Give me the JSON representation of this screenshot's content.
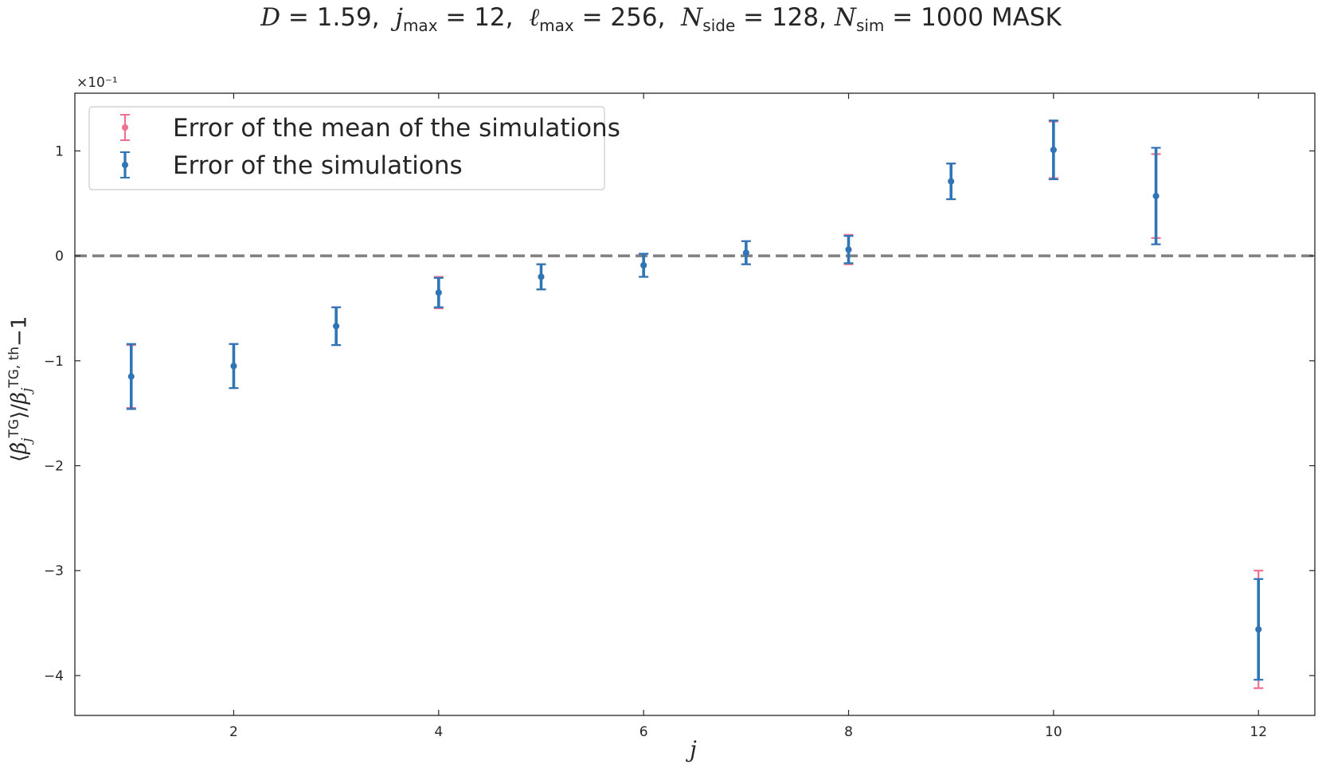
{
  "chart_data": {
    "type": "scatter",
    "title": "D = 1.59,  j_max = 12,  ℓ_max = 256,  N_side = 128, N_sim = 1000 MASK",
    "xlabel": "j",
    "ylabel": "⟨β̂_j^TG⟩/β_j^TG, th − 1",
    "y_multiplier": "×10⁻¹",
    "xlim": [
      0.45,
      12.55
    ],
    "ylim": [
      -4.38,
      1.55
    ],
    "xticks": [
      2,
      4,
      6,
      8,
      10,
      12
    ],
    "yticks": [
      1,
      0,
      -1,
      -2,
      -3,
      -4
    ],
    "ytick_labels": [
      "1",
      "0",
      "−1",
      "−2",
      "−3",
      "−4"
    ],
    "reference_line": {
      "y": 0,
      "style": "dashed",
      "color": "#808080"
    },
    "grid": false,
    "legend_position": "top-left",
    "series": [
      {
        "name": "Error of the mean of the simulations",
        "color": "#f0718f",
        "x": [
          1,
          2,
          3,
          4,
          5,
          6,
          7,
          8,
          9,
          10,
          11,
          12
        ],
        "y": [
          -1.15,
          -1.05,
          -0.67,
          -0.35,
          -0.2,
          -0.09,
          0.03,
          0.06,
          0.71,
          1.01,
          0.57,
          -3.56
        ],
        "err": [
          0.3,
          0.21,
          0.18,
          0.15,
          0.12,
          0.11,
          0.11,
          0.14,
          0.17,
          0.27,
          0.4,
          0.56
        ]
      },
      {
        "name": "Error of the simulations",
        "color": "#2e75b6",
        "x": [
          1,
          2,
          3,
          4,
          5,
          6,
          7,
          8,
          9,
          10,
          11,
          12
        ],
        "y": [
          -1.15,
          -1.05,
          -0.67,
          -0.35,
          -0.2,
          -0.09,
          0.03,
          0.06,
          0.71,
          1.01,
          0.57,
          -3.56
        ],
        "err": [
          0.31,
          0.21,
          0.18,
          0.14,
          0.12,
          0.11,
          0.11,
          0.13,
          0.17,
          0.28,
          0.46,
          0.48
        ]
      }
    ]
  }
}
